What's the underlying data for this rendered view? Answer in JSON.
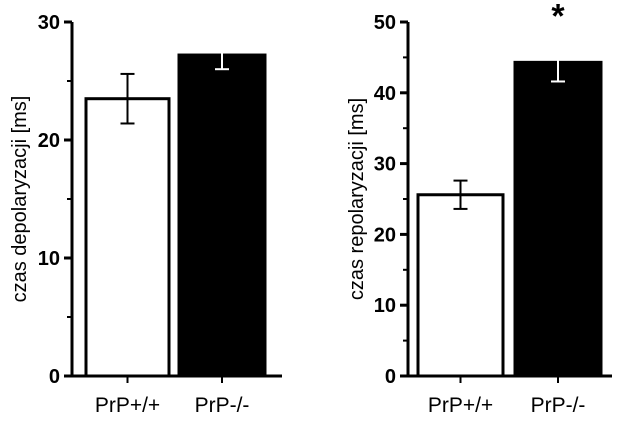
{
  "chart_data": [
    {
      "type": "bar",
      "categories": [
        "PrP+/+",
        "PrP-/-"
      ],
      "values": [
        23.5,
        27.2
      ],
      "errors": [
        2.1,
        1.2
      ],
      "bar_colors": [
        "#ffffff",
        "#000000"
      ],
      "ylabel": "czas depolaryzacji [ms]",
      "ylim": [
        0,
        30
      ],
      "yticks": [
        0,
        10,
        20,
        30
      ],
      "annotations": []
    },
    {
      "type": "bar",
      "categories": [
        "PrP+/+",
        "PrP-/-"
      ],
      "values": [
        25.6,
        44.3
      ],
      "errors": [
        2.0,
        2.7
      ],
      "bar_colors": [
        "#ffffff",
        "#000000"
      ],
      "ylabel": "czas repolaryzacji [ms]",
      "ylim": [
        0,
        50
      ],
      "yticks": [
        0,
        10,
        20,
        30,
        40,
        50
      ],
      "annotations": [
        {
          "category_index": 1,
          "text": "*"
        }
      ]
    }
  ]
}
